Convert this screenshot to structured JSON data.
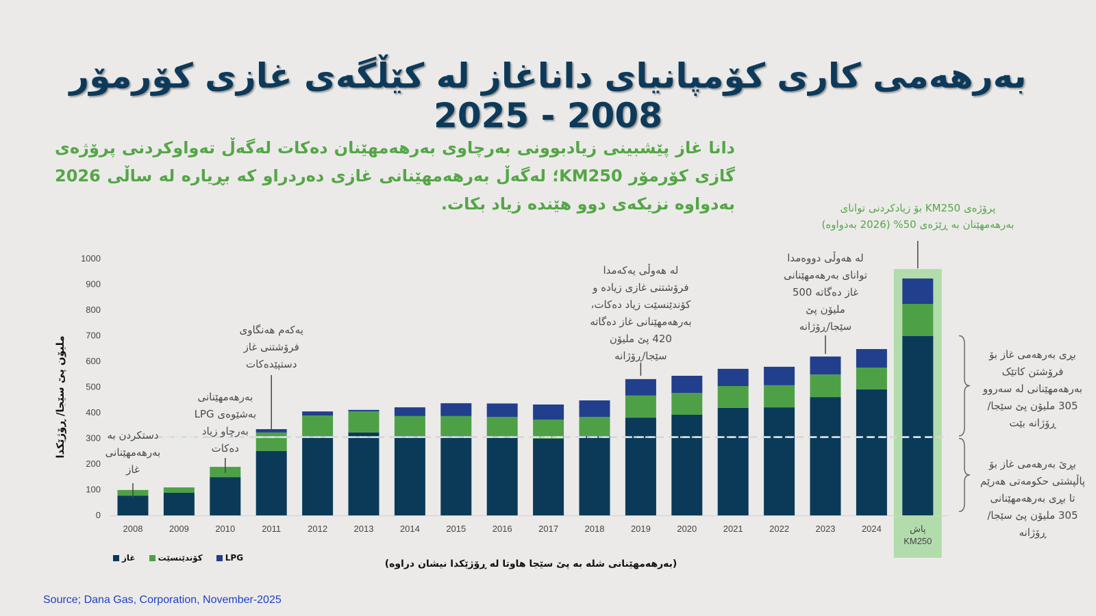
{
  "title": "بەرهەمی کاری کۆمپانیای داناغاز لە کێڵگەی غازی کۆرمۆر 2008 - 2025",
  "subtitle": "دانا غاز پێشبینی زیادبوونی بەرچاوی بەرهەمهێنان دەکات لەگەڵ تەواوکردنی پرۆژەی گازی کۆرمۆر KM250؛ لەگەڵ بەرهەمهێنانی غازی دەردراو کە بڕیارە لە ساڵی 2026 بەدواوە نزیکەی دوو هێندە زیاد بکات.",
  "km250_note": {
    "line1": "پرۆژەی KM250 بۆ زیادکردنی توانای",
    "line2": "بەرهەمهێنان بە ڕێژەی 50% (2026 بەدواوە)"
  },
  "annotations": [
    {
      "year": "2008",
      "lines": [
        "دستکردن بە",
        "بەرهەمهێنانی",
        "غاز"
      ]
    },
    {
      "year": "2010",
      "lines": [
        "بەرهەمهێنانی",
        "بەشێوەی LPG",
        "بەرچاو زیاد",
        "دەکات"
      ]
    },
    {
      "year": "2011",
      "lines": [
        "یەکەم هەنگاوی",
        "فرۆشتنی غاز",
        "دستپێدەکات"
      ]
    },
    {
      "year": "2019",
      "lines": [
        "لە هەوڵی یەکەمدا",
        "فرۆشتنی غازی زیادە و",
        "کۆندێنسێت زیاد دەکات،",
        "بەرهەمهێنانی غاز دەگاتە",
        "420 پێ ملیۆن",
        "سێجا/ڕۆژانە"
      ]
    },
    {
      "year": "2023",
      "lines": [
        "لە هەوڵی دووەمدا",
        "توانای بەرهەمهێنانی",
        "غاز دەگاتە 500",
        "ملیۆن پێ",
        "سێجا/ڕۆژانە"
      ]
    }
  ],
  "brace_notes": {
    "upper": [
      "بڕی بەرهەمی غاز بۆ",
      "فرۆشتن کاتێک",
      "بەرهەمهێنانی لە سەروو",
      "305 ملیۆن پێ سێجا/",
      "ڕۆژانە بێت"
    ],
    "lower": [
      "بڕێ بەرهەمی غاز بۆ",
      "پاڵپشتی حکومەتی هەرێم",
      "تا بڕی بەرهەمهێنانی",
      "305 ملیۆن پێ سێجا/",
      "ڕۆژانە"
    ]
  },
  "source": "Source; Dana Gas, Corporation, November-2025",
  "colors": {
    "gas": "#0b3a59",
    "condensate": "#4ea047",
    "lpg": "#213f8c",
    "highlight": "#b3dcac",
    "title": "#0d3a5a",
    "accent_green": "#55a646",
    "source": "#1f3fc4"
  },
  "chart_data": {
    "type": "bar",
    "stacked": true,
    "title": "",
    "ylabel": "ملیۆن پێ سێجا/ ڕۆژێکدا",
    "xlabel": "(بەرهەمهێنانی شلە بە پێ سێجا هاوتا لە ڕۆژێکدا نیشان دراوە)",
    "ylim": [
      0,
      1000
    ],
    "yticks": [
      0,
      100,
      200,
      300,
      400,
      500,
      600,
      700,
      800,
      900,
      1000
    ],
    "reference_line": 305,
    "categories": [
      "2008",
      "2009",
      "2010",
      "2011",
      "2012",
      "2013",
      "2014",
      "2015",
      "2016",
      "2017",
      "2018",
      "2019",
      "2020",
      "2021",
      "2022",
      "2023",
      "2024",
      "پاش KM250"
    ],
    "highlight_category": "پاش KM250",
    "legend_position": "bottom-left",
    "series": [
      {
        "name": "غاز",
        "key": "gas",
        "values": [
          77,
          88,
          149,
          251,
          309,
          323,
          309,
          309,
          307,
          299,
          309,
          381,
          392,
          419,
          421,
          461,
          491,
          699
        ]
      },
      {
        "name": "کۆندێنسێت",
        "key": "condensate",
        "values": [
          22,
          21,
          40,
          72,
          80,
          82,
          78,
          78,
          77,
          74,
          75,
          86,
          85,
          85,
          86,
          88,
          85,
          125
        ]
      },
      {
        "name": "LPG",
        "key": "lpg",
        "values": [
          0,
          0,
          0,
          13,
          16,
          6,
          34,
          50,
          52,
          59,
          64,
          64,
          67,
          67,
          72,
          70,
          72,
          99
        ]
      }
    ]
  }
}
